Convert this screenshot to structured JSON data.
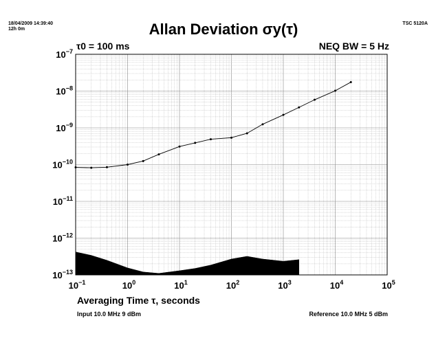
{
  "header": {
    "timestamp": "18/04/2009 14:39:40",
    "elapsed": "12h 0m",
    "instrument": "TSC 5120A"
  },
  "chart_data": {
    "type": "line",
    "title": "Allan Deviation σy(τ)",
    "annotations": {
      "tau0": "τ0 = 100 ms",
      "neq_bw": "NEQ BW = 5 Hz"
    },
    "xlabel": "Averaging Time τ, seconds",
    "ylabel": "",
    "x_scale": "log",
    "y_scale": "log",
    "xlim": [
      0.1,
      100000
    ],
    "ylim": [
      1e-13,
      1e-07
    ],
    "grid": true,
    "x_ticks": [
      "10-1",
      "100",
      "101",
      "102",
      "103",
      "104",
      "105"
    ],
    "y_ticks": [
      "10-7",
      "10-8",
      "10-9",
      "10-10",
      "10-11",
      "10-12",
      "10-13"
    ],
    "series": [
      {
        "style": "line-with-markers",
        "color": "#000000",
        "x": [
          0.1,
          0.2,
          0.4,
          1,
          2,
          4,
          10,
          20,
          40,
          100,
          200,
          400,
          1000,
          2000,
          4000,
          10000,
          20000
        ],
        "y": [
          8.4e-11,
          8.2e-11,
          8.5e-11,
          1e-10,
          1.25e-10,
          1.9e-10,
          3.1e-10,
          3.9e-10,
          4.9e-10,
          5.4e-10,
          7.1e-10,
          1.25e-09,
          2.25e-09,
          3.6e-09,
          5.8e-09,
          1.02e-08,
          1.75e-08
        ]
      },
      {
        "style": "filled-area",
        "color": "#000000",
        "x": [
          0.1,
          0.2,
          0.4,
          1,
          2,
          4,
          10,
          20,
          40,
          100,
          200,
          400,
          1000,
          2000
        ],
        "y": [
          4.2e-13,
          3.4e-13,
          2.5e-13,
          1.55e-13,
          1.2e-13,
          1.1e-13,
          1.3e-13,
          1.5e-13,
          1.85e-13,
          2.7e-13,
          3.2e-13,
          2.7e-13,
          2.35e-13,
          2.6e-13
        ]
      }
    ]
  },
  "footer": {
    "input": "Input 10.0 MHz 9 dBm",
    "reference": "Reference 10.0 MHz 5 dBm"
  }
}
